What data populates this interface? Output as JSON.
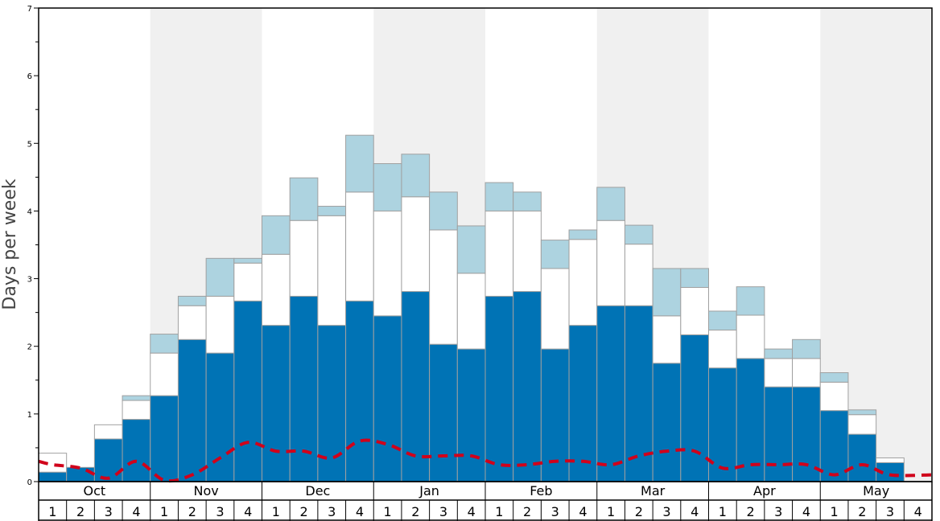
{
  "chart_data": {
    "type": "bar",
    "stacked": true,
    "ylabel": "Days per week",
    "ylim": [
      0,
      7
    ],
    "yticks": [
      0,
      1,
      2,
      3,
      4,
      5,
      6,
      7
    ],
    "months": [
      "Oct",
      "Nov",
      "Dec",
      "Jan",
      "Feb",
      "Mar",
      "Apr",
      "May"
    ],
    "weeks": [
      "1",
      "2",
      "3",
      "4"
    ],
    "series": [
      {
        "name": "dark-blue",
        "color": "#0073b5",
        "values": [
          0.14,
          0.21,
          0.63,
          0.92,
          1.27,
          2.1,
          1.9,
          2.67,
          2.31,
          2.74,
          2.31,
          2.67,
          2.45,
          2.81,
          2.03,
          1.96,
          2.74,
          2.81,
          1.96,
          2.31,
          2.6,
          2.6,
          1.75,
          2.17,
          1.68,
          1.82,
          1.4,
          1.4,
          1.05,
          0.7,
          0.28,
          0
        ]
      },
      {
        "name": "white",
        "color": "#ffffff",
        "values": [
          0.28,
          0,
          0.21,
          0.28,
          0.63,
          0.5,
          0.84,
          0.56,
          1.05,
          1.12,
          1.62,
          1.61,
          1.55,
          1.4,
          1.69,
          1.12,
          1.26,
          1.19,
          1.19,
          1.27,
          1.26,
          0.91,
          0.7,
          0.7,
          0.56,
          0.64,
          0.42,
          0.42,
          0.42,
          0.29,
          0.07,
          0
        ]
      },
      {
        "name": "light-blue",
        "color": "#add3e0",
        "values": [
          0,
          0,
          0,
          0.07,
          0.28,
          0.14,
          0.56,
          0.07,
          0.57,
          0.63,
          0.14,
          0.84,
          0.7,
          0.63,
          0.56,
          0.7,
          0.42,
          0.28,
          0.42,
          0.14,
          0.49,
          0.28,
          0.7,
          0.28,
          0.28,
          0.42,
          0.14,
          0.28,
          0.14,
          0.07,
          0,
          0
        ]
      }
    ],
    "line": {
      "name": "dashed-average",
      "color": "#d0021b",
      "values": [
        0.3,
        0.25,
        0.2,
        0.05,
        0.3,
        0.02,
        0.1,
        0.35,
        0.58,
        0.45,
        0.45,
        0.35,
        0.6,
        0.55,
        0.38,
        0.38,
        0.38,
        0.25,
        0.25,
        0.3,
        0.3,
        0.25,
        0.38,
        0.45,
        0.45,
        0.2,
        0.25,
        0.25,
        0.25,
        0.1,
        0.25,
        0.1,
        0.1
      ]
    }
  }
}
